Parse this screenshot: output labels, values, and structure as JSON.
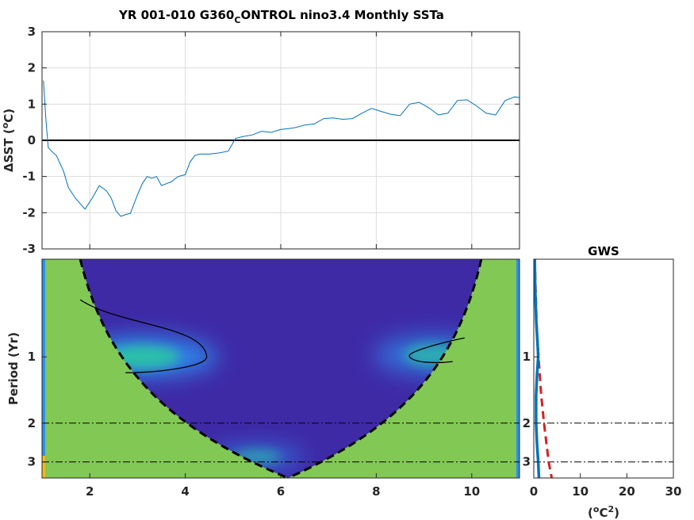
{
  "title": {
    "before_sub": "YR 001-010 G360",
    "subscript": "C",
    "after_sub": "ONTROL nino3.4 Monthly SSTa"
  },
  "gws_title": "GWS",
  "colors": {
    "series": "#0072bd",
    "zero_line": "#000000",
    "mask": "#82c855",
    "wavelet_low": "#3f2aa6",
    "wavelet_mid": "#2f8ff0",
    "wavelet_high": "#29c0a8",
    "significance": "#d62020",
    "gws_line": "#0072bd",
    "grid": "#dcdcdc"
  },
  "chart_data": [
    {
      "type": "line",
      "ylabel": "ΔSST (°C)",
      "ylabel_parts": {
        "before": "ΔSST (",
        "sup": "o",
        "after": "C)"
      },
      "xlim": [
        1,
        11
      ],
      "ylim": [
        -3,
        3
      ],
      "xticks": [
        2,
        4,
        6,
        8,
        10
      ],
      "yticks": [
        -3,
        -2,
        -1,
        0,
        1,
        2,
        3
      ],
      "ytick_labels": [
        "-3",
        "-2",
        "-1",
        "0",
        "1",
        "2",
        "3"
      ],
      "grid": true,
      "reference_line": 0,
      "series": [
        {
          "x": [
            1.03,
            1.08,
            1.13,
            1.2,
            1.3,
            1.45,
            1.55,
            1.7,
            1.9,
            2.05,
            2.2,
            2.35,
            2.45,
            2.55,
            2.65,
            2.75,
            2.85,
            3.0,
            3.1,
            3.2,
            3.3,
            3.4,
            3.5,
            3.6,
            3.7,
            3.85,
            4.0,
            4.1,
            4.2,
            4.3,
            4.5,
            4.7,
            4.9,
            5.05,
            5.2,
            5.4,
            5.6,
            5.8,
            6.0,
            6.15,
            6.3,
            6.5,
            6.7,
            6.9,
            7.1,
            7.3,
            7.5,
            7.7,
            7.9,
            8.1,
            8.3,
            8.5,
            8.7,
            8.9,
            9.1,
            9.3,
            9.5,
            9.7,
            9.9,
            10.1,
            10.3,
            10.5,
            10.7,
            10.9,
            11.0
          ],
          "y": [
            1.65,
            0.6,
            -0.2,
            -0.3,
            -0.42,
            -0.85,
            -1.3,
            -1.6,
            -1.9,
            -1.6,
            -1.25,
            -1.4,
            -1.6,
            -1.95,
            -2.1,
            -2.05,
            -2.02,
            -1.5,
            -1.2,
            -1.0,
            -1.05,
            -1.0,
            -1.25,
            -1.2,
            -1.15,
            -1.0,
            -0.95,
            -0.6,
            -0.42,
            -0.38,
            -0.38,
            -0.35,
            -0.3,
            0.05,
            0.1,
            0.15,
            0.25,
            0.22,
            0.3,
            0.32,
            0.35,
            0.42,
            0.45,
            0.6,
            0.62,
            0.58,
            0.6,
            0.75,
            0.88,
            0.8,
            0.72,
            0.68,
            1.0,
            1.05,
            0.9,
            0.7,
            0.75,
            1.1,
            1.12,
            0.95,
            0.75,
            0.7,
            1.1,
            1.2,
            1.18
          ]
        }
      ]
    },
    {
      "type": "heatmap",
      "ylabel": "Period (Yr)",
      "xlim": [
        1,
        11
      ],
      "xticks": [
        2,
        4,
        6,
        8,
        10
      ],
      "ytick_values": [
        1,
        2,
        3
      ],
      "ylim": [
        0.36,
        3.55
      ],
      "reference_periods": [
        2,
        3
      ],
      "power_peaks": [
        {
          "x": 3.1,
          "period": 1.0,
          "level": 1.0
        },
        {
          "x": 9.2,
          "period": 0.98,
          "level": 0.75
        },
        {
          "x": 5.5,
          "period": 2.85,
          "level": 0.65
        }
      ]
    },
    {
      "type": "line",
      "title": "GWS",
      "xlabel": "(°C²)",
      "xlabel_parts": {
        "before": "(",
        "sup1": "o",
        "mid": "C",
        "sup2": "2",
        "after": ")"
      },
      "xlim": [
        0,
        30
      ],
      "xticks": [
        0,
        10,
        20,
        30
      ],
      "ytick_values": [
        1,
        2,
        3
      ],
      "series": [
        {
          "name": "global wavelet spectrum",
          "period": [
            0.36,
            0.5,
            0.7,
            0.9,
            1.0,
            1.2,
            1.5,
            2.0,
            2.5,
            3.0,
            3.55
          ],
          "power": [
            0.2,
            0.3,
            0.55,
            0.85,
            0.95,
            0.7,
            0.5,
            0.5,
            0.7,
            0.95,
            1.1
          ]
        },
        {
          "name": "significance",
          "period": [
            0.36,
            0.7,
            1.0,
            1.5,
            2.0,
            2.5,
            3.0,
            3.55
          ],
          "power": [
            0.2,
            0.6,
            1.0,
            1.6,
            2.2,
            2.75,
            3.2,
            3.85
          ]
        }
      ]
    }
  ]
}
